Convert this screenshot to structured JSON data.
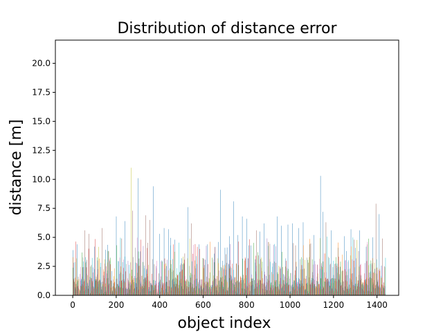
{
  "chart_data": {
    "type": "bar",
    "title": "Distribution of distance error",
    "xlabel": "object index",
    "ylabel": "distance [m]",
    "xlim": [
      -80,
      1500
    ],
    "ylim": [
      0,
      22
    ],
    "xticks": [
      0,
      200,
      400,
      600,
      800,
      1000,
      1200,
      1400
    ],
    "xtick_labels": [
      "0",
      "200",
      "400",
      "600",
      "800",
      "1000",
      "1200",
      "1400"
    ],
    "yticks": [
      0.0,
      2.5,
      5.0,
      7.5,
      10.0,
      12.5,
      15.0,
      17.5,
      20.0
    ],
    "ytick_labels": [
      "0.0",
      "2.5",
      "5.0",
      "7.5",
      "10.0",
      "12.5",
      "15.0",
      "17.5",
      "20.0"
    ],
    "grid": false,
    "legend": false,
    "colors": [
      "#1f77b4",
      "#ff7f0e",
      "#2ca02c",
      "#d62728",
      "#9467bd",
      "#8c564b",
      "#e377c2",
      "#7f7f7f",
      "#bcbd22",
      "#17becf"
    ],
    "n_objects": 1440,
    "peaks": [
      {
        "x": 0,
        "value": 3.9
      },
      {
        "x": 20,
        "value": 4.4
      },
      {
        "x": 55,
        "value": 5.6
      },
      {
        "x": 75,
        "value": 5.3
      },
      {
        "x": 100,
        "value": 4.2
      },
      {
        "x": 135,
        "value": 5.8
      },
      {
        "x": 165,
        "value": 3.8
      },
      {
        "x": 200,
        "value": 6.8
      },
      {
        "x": 225,
        "value": 4.9
      },
      {
        "x": 240,
        "value": 6.4
      },
      {
        "x": 268,
        "value": 11.0
      },
      {
        "x": 275,
        "value": 7.3
      },
      {
        "x": 300,
        "value": 10.1
      },
      {
        "x": 335,
        "value": 6.9
      },
      {
        "x": 355,
        "value": 6.5
      },
      {
        "x": 370,
        "value": 9.4
      },
      {
        "x": 400,
        "value": 5.3
      },
      {
        "x": 420,
        "value": 5.8
      },
      {
        "x": 440,
        "value": 5.7
      },
      {
        "x": 470,
        "value": 4.8
      },
      {
        "x": 500,
        "value": 3.2
      },
      {
        "x": 530,
        "value": 7.6
      },
      {
        "x": 545,
        "value": 6.2
      },
      {
        "x": 570,
        "value": 2.7
      },
      {
        "x": 600,
        "value": 3.2
      },
      {
        "x": 620,
        "value": 4.4
      },
      {
        "x": 650,
        "value": 3.6
      },
      {
        "x": 670,
        "value": 4.6
      },
      {
        "x": 680,
        "value": 9.1
      },
      {
        "x": 700,
        "value": 4.1
      },
      {
        "x": 720,
        "value": 5.1
      },
      {
        "x": 740,
        "value": 8.1
      },
      {
        "x": 760,
        "value": 5.2
      },
      {
        "x": 780,
        "value": 6.8
      },
      {
        "x": 800,
        "value": 6.6
      },
      {
        "x": 820,
        "value": 4.3
      },
      {
        "x": 845,
        "value": 5.6
      },
      {
        "x": 860,
        "value": 5.5
      },
      {
        "x": 880,
        "value": 6.2
      },
      {
        "x": 900,
        "value": 4.6
      },
      {
        "x": 940,
        "value": 6.8
      },
      {
        "x": 960,
        "value": 6.0
      },
      {
        "x": 990,
        "value": 6.1
      },
      {
        "x": 1010,
        "value": 6.2
      },
      {
        "x": 1040,
        "value": 5.8
      },
      {
        "x": 1060,
        "value": 6.3
      },
      {
        "x": 1090,
        "value": 4.4
      },
      {
        "x": 1110,
        "value": 5.2
      },
      {
        "x": 1140,
        "value": 10.3
      },
      {
        "x": 1150,
        "value": 7.2
      },
      {
        "x": 1165,
        "value": 6.3
      },
      {
        "x": 1190,
        "value": 5.6
      },
      {
        "x": 1220,
        "value": 4.1
      },
      {
        "x": 1250,
        "value": 5.1
      },
      {
        "x": 1280,
        "value": 5.7
      },
      {
        "x": 1300,
        "value": 4.1
      },
      {
        "x": 1320,
        "value": 5.6
      },
      {
        "x": 1350,
        "value": 4.2
      },
      {
        "x": 1380,
        "value": 5.0
      },
      {
        "x": 1395,
        "value": 7.9
      },
      {
        "x": 1410,
        "value": 7.0
      },
      {
        "x": 1425,
        "value": 4.9
      },
      {
        "x": 1435,
        "value": 2.5
      }
    ]
  }
}
